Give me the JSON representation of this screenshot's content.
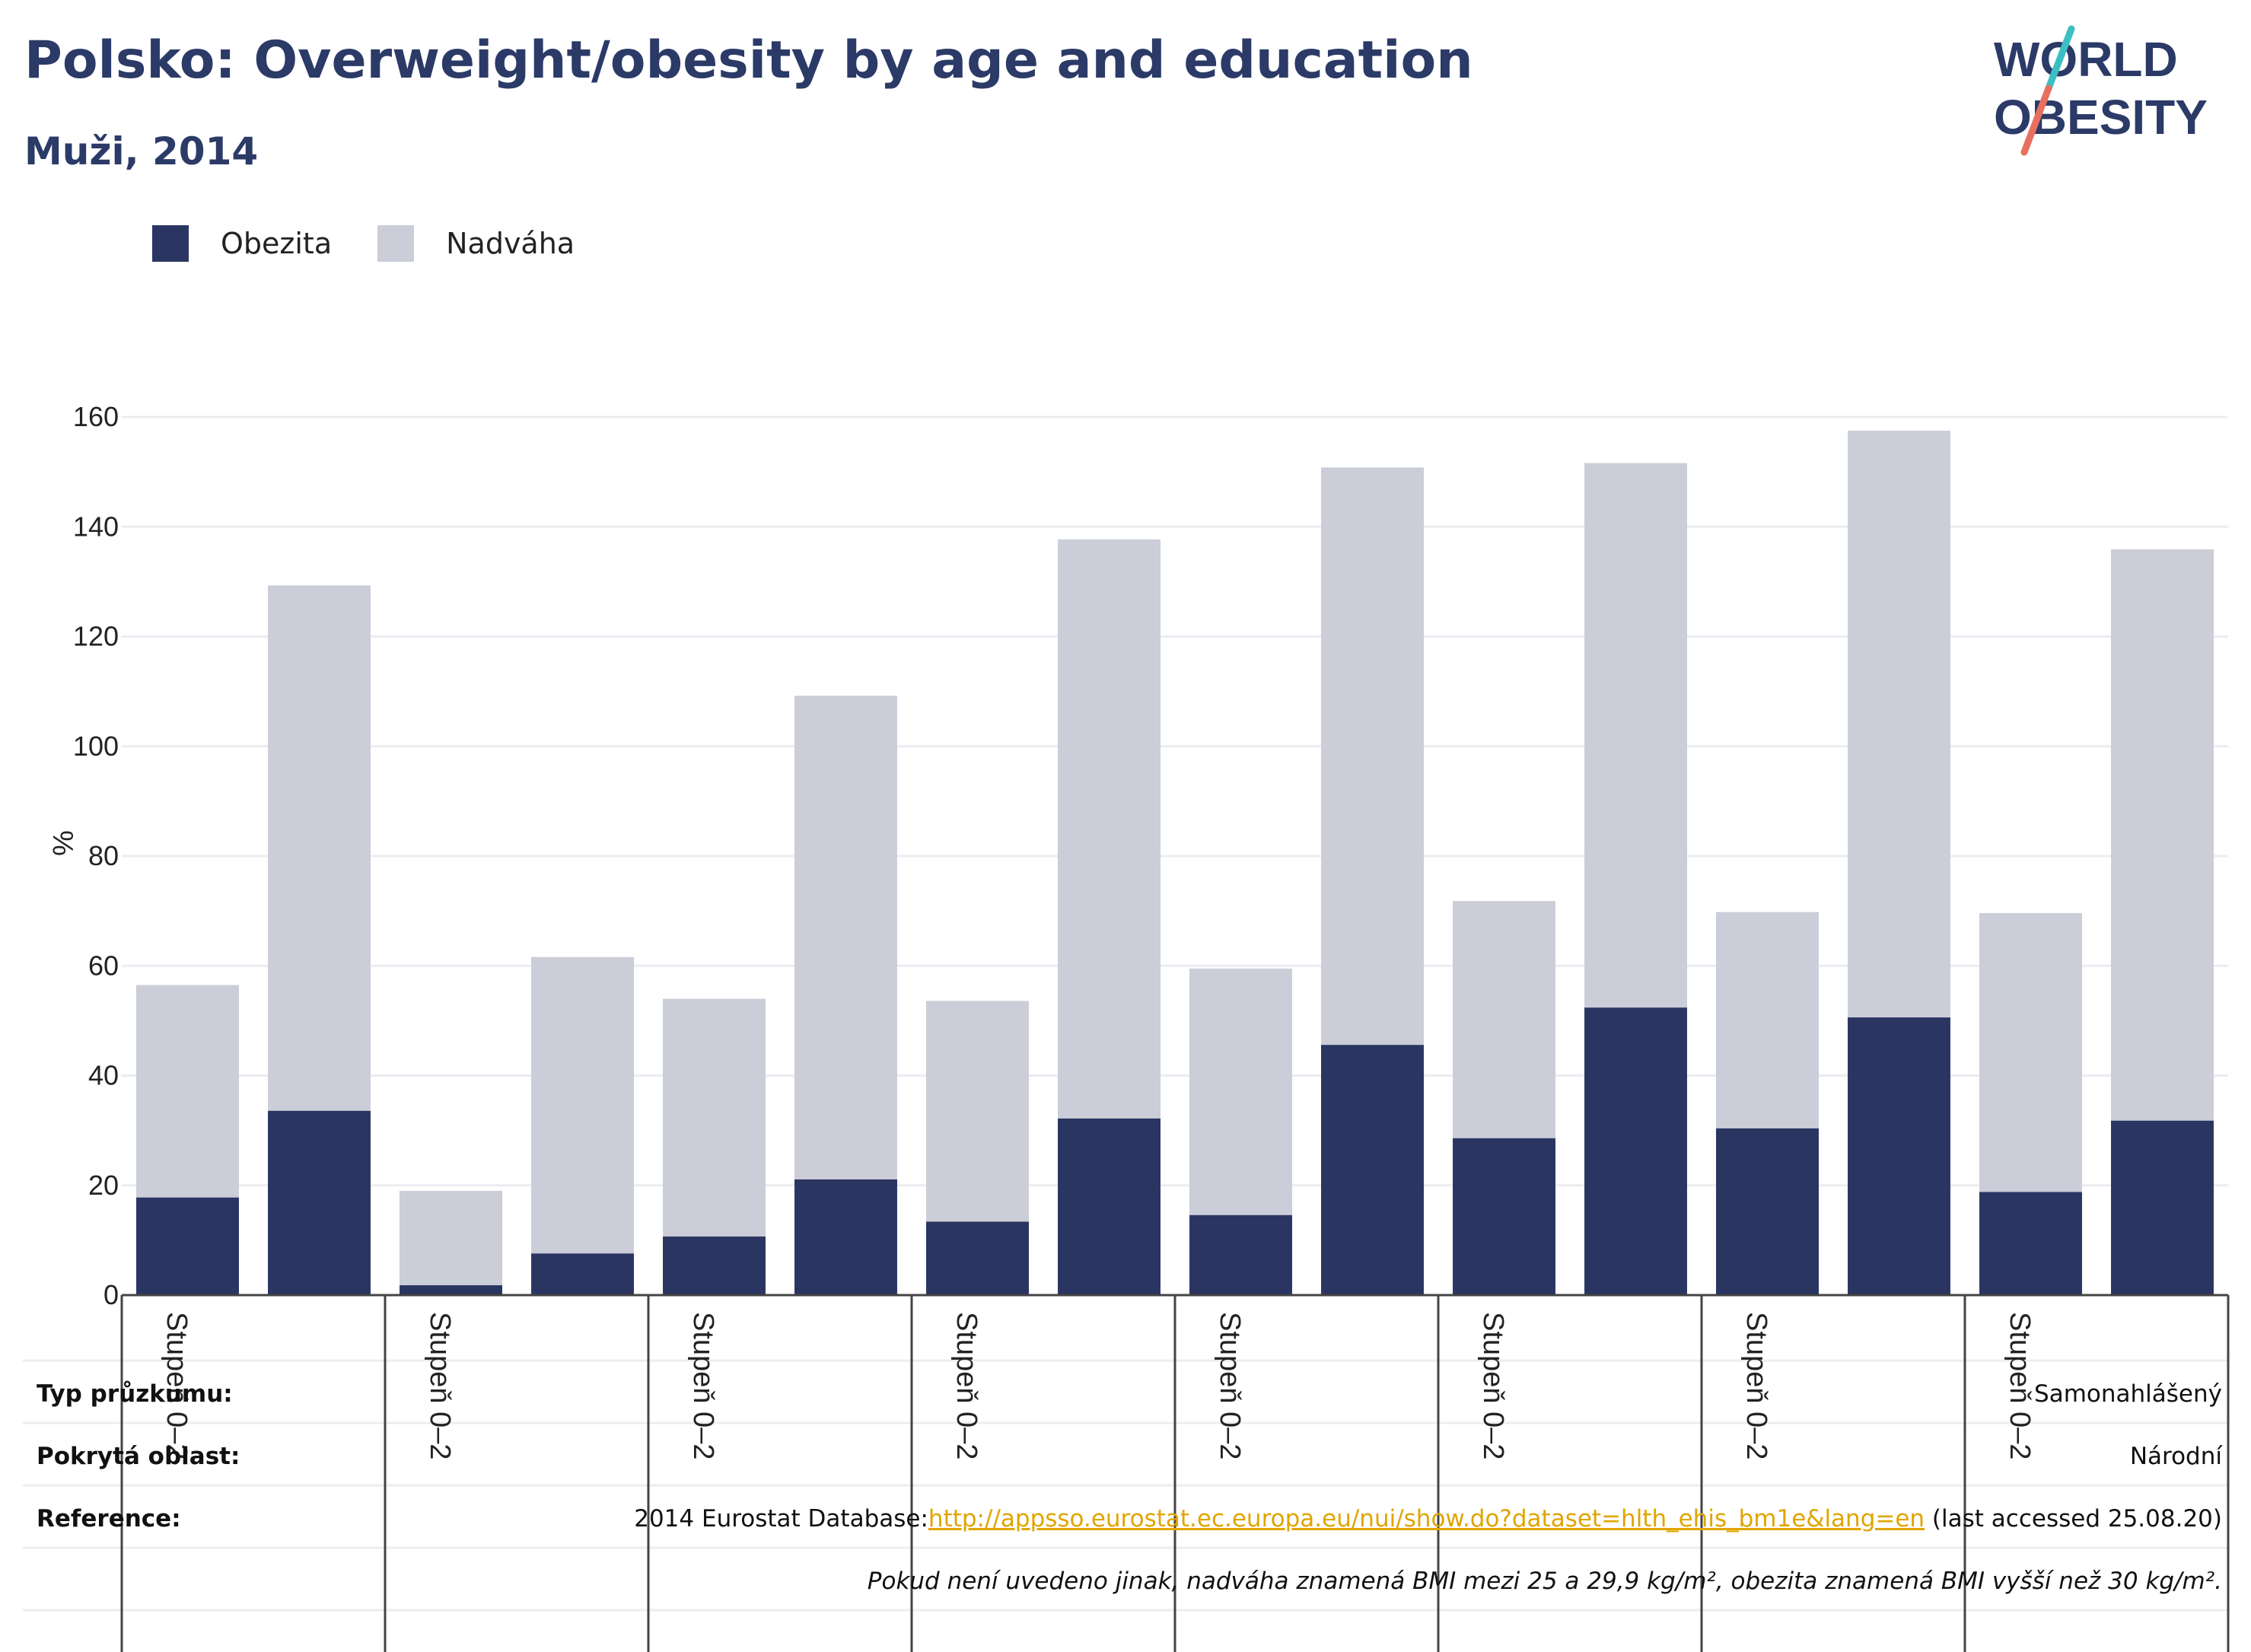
{
  "header": {
    "title": "Polsko: Overweight/obesity by age and education",
    "subtitle": "Muži, 2014",
    "logo_text_line1": "WORLD",
    "logo_text_line2": "OBESITY"
  },
  "colors": {
    "obesity": "#2b3562",
    "overweight": "#cbcdd8",
    "title": "#2b3a67",
    "link": "#e0a500",
    "logo_teal": "#3bbfc2",
    "logo_coral": "#e8705f"
  },
  "legend": {
    "obesity_label": "Obezita",
    "overweight_label": "Nadváha"
  },
  "chart_data": {
    "type": "bar",
    "stacked": true,
    "ylabel": "%",
    "ylim": [
      0,
      160
    ],
    "yticks": [
      0,
      20,
      40,
      60,
      80,
      100,
      120,
      140,
      160
    ],
    "grid": true,
    "legend_position": "top-left",
    "group_labels": [
      "Stupeň 0–2",
      "Stupeň 0–2",
      "Stupeň 0–2",
      "Stupeň 0–2",
      "Stupeň 0–2",
      "Stupeň 0–2",
      "Stupeň 0–2",
      "Stupeň 0–2"
    ],
    "series": [
      {
        "name": "Obezita",
        "values": [
          17.8,
          33.6,
          1.8,
          7.6,
          10.7,
          21.1,
          13.4,
          32.2,
          14.6,
          45.6,
          28.6,
          52.4,
          30.4,
          50.6,
          18.8,
          31.8
        ]
      },
      {
        "name": "Nadváha",
        "values": [
          38.7,
          95.7,
          17.2,
          54.0,
          43.3,
          88.1,
          40.2,
          105.5,
          44.9,
          105.2,
          43.2,
          99.2,
          39.4,
          106.9,
          50.8,
          104.1
        ]
      }
    ]
  },
  "info": {
    "survey_type_label": "Typ průzkumu:",
    "survey_type_value": "Samonahlášený",
    "area_label": "Pokrytá oblast:",
    "area_value": "Národní",
    "reference_label": "Reference:",
    "reference_prefix": "2014 Eurostat Database:",
    "reference_link": "http://appsso.eurostat.ec.europa.eu/nui/show.do?dataset=hlth_ehis_bm1e&lang=en",
    "reference_suffix": " (last accessed 25.08.20)",
    "note": "Pokud není uvedeno jinak, nadváha znamená BMI mezi 25 a 29,9 kg/m², obezita znamená BMI vyšší než 30 kg/m²."
  }
}
